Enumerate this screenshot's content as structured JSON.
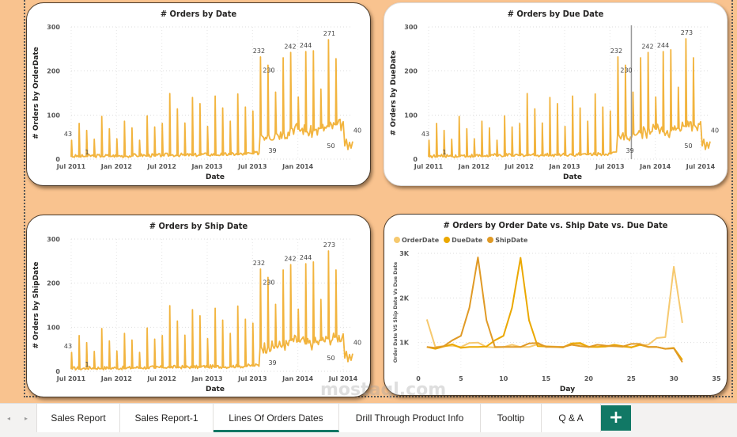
{
  "colors": {
    "background": "#F9C38F",
    "line": "#F2B43E",
    "accent": "#117865",
    "order_series": "#F6C96F",
    "due_series": "#EBA800",
    "ship_series": "#E09A26"
  },
  "tabs": {
    "items": [
      {
        "label": "Sales Report",
        "active": false
      },
      {
        "label": "Sales Report-1",
        "active": false
      },
      {
        "label": "Lines Of Orders Dates",
        "active": true
      },
      {
        "label": "Drill Through Product Info",
        "active": false
      },
      {
        "label": "Tooltip",
        "active": false
      },
      {
        "label": "Q & A",
        "active": false
      }
    ],
    "add_label": "+",
    "prev_icon": "◂",
    "next_icon": "▸"
  },
  "watermark": "mostaql.com",
  "chart_data": [
    {
      "type": "line",
      "title": "# Orders by Date",
      "xlabel": "Date",
      "ylabel": "# Orders by OrderDate",
      "ylim": [
        0,
        300
      ],
      "yticks": [
        "0",
        "100",
        "200",
        "300"
      ],
      "xticks": [
        "Jul 2011",
        "Jan 2012",
        "Jul 2012",
        "Jan 2013",
        "Jul 2013",
        "Jan 2014"
      ],
      "grid": true,
      "annotations": [
        {
          "label": "43",
          "x": 0.0,
          "y": 43
        },
        {
          "label": "1",
          "x": 0.03,
          "y": 1
        },
        {
          "label": "232",
          "x": 0.667,
          "y": 232
        },
        {
          "label": "230",
          "x": 0.75,
          "y": 230
        },
        {
          "label": "242",
          "x": 0.778,
          "y": 242
        },
        {
          "label": "244",
          "x": 0.833,
          "y": 244
        },
        {
          "label": "39",
          "x": 0.75,
          "y": 39
        },
        {
          "label": "271",
          "x": 0.917,
          "y": 271
        },
        {
          "label": "50",
          "x": 0.94,
          "y": 50
        },
        {
          "label": "40",
          "x": 1.0,
          "y": 40
        }
      ],
      "monthly_spikes": [
        43,
        81,
        65,
        45,
        97,
        69,
        46,
        86,
        71,
        43,
        98,
        73,
        81,
        149,
        114,
        82,
        140,
        126,
        74,
        143,
        116,
        86,
        148,
        118,
        109,
        232,
        213,
        152,
        230,
        242,
        141,
        244,
        246,
        159,
        271,
        228
      ],
      "baseline": [
        5,
        5,
        6,
        6,
        6,
        6,
        6,
        6,
        7,
        7,
        7,
        7,
        8,
        8,
        8,
        8,
        8,
        9,
        9,
        9,
        9,
        10,
        10,
        11,
        12,
        55,
        55,
        58,
        60,
        70,
        68,
        62,
        65,
        70,
        74,
        78
      ],
      "tail": 30
    },
    {
      "type": "line",
      "title": "# Orders by Due Date",
      "xlabel": "Date",
      "ylabel": "# Orders by DueDate",
      "ylim": [
        0,
        300
      ],
      "yticks": [
        "0",
        "100",
        "200",
        "300"
      ],
      "xticks": [
        "Jul 2011",
        "Jan 2012",
        "Jul 2012",
        "Jan 2013",
        "Jul 2013",
        "Jan 2014",
        "Jul 2014"
      ],
      "grid": true,
      "annotations": [
        {
          "label": "43",
          "x": 0.0,
          "y": 43
        },
        {
          "label": "1",
          "x": 0.03,
          "y": 1
        },
        {
          "label": "232",
          "x": 0.667,
          "y": 232
        },
        {
          "label": "230",
          "x": 0.75,
          "y": 230
        },
        {
          "label": "242",
          "x": 0.778,
          "y": 242
        },
        {
          "label": "244",
          "x": 0.833,
          "y": 244
        },
        {
          "label": "39",
          "x": 0.75,
          "y": 39
        },
        {
          "label": "273",
          "x": 0.917,
          "y": 273
        },
        {
          "label": "50",
          "x": 0.94,
          "y": 50
        },
        {
          "label": "40",
          "x": 1.0,
          "y": 40
        }
      ],
      "monthly_spikes": [
        43,
        81,
        65,
        45,
        97,
        69,
        46,
        86,
        71,
        43,
        98,
        73,
        81,
        149,
        114,
        82,
        140,
        126,
        74,
        143,
        116,
        86,
        148,
        118,
        109,
        232,
        213,
        152,
        230,
        242,
        141,
        244,
        248,
        163,
        273,
        230
      ],
      "baseline": [
        5,
        5,
        6,
        6,
        6,
        6,
        6,
        6,
        7,
        7,
        7,
        7,
        8,
        8,
        8,
        8,
        8,
        9,
        9,
        9,
        9,
        10,
        10,
        11,
        12,
        55,
        55,
        58,
        60,
        70,
        68,
        62,
        65,
        70,
        74,
        78
      ],
      "tail": 30,
      "reference_line_x": "Sep 2013"
    },
    {
      "type": "line",
      "title": "# Orders by Ship Date",
      "xlabel": "Date",
      "ylabel": "# Orders by ShipDate",
      "ylim": [
        0,
        300
      ],
      "yticks": [
        "0",
        "100",
        "200",
        "300"
      ],
      "xticks": [
        "Jul 2011",
        "Jan 2012",
        "Jul 2012",
        "Jan 2013",
        "Jul 2013",
        "Jan 2014",
        "Jul 2014"
      ],
      "grid": true,
      "annotations": [
        {
          "label": "43",
          "x": 0.0,
          "y": 43
        },
        {
          "label": "1",
          "x": 0.03,
          "y": 1
        },
        {
          "label": "232",
          "x": 0.667,
          "y": 232
        },
        {
          "label": "230",
          "x": 0.75,
          "y": 230
        },
        {
          "label": "242",
          "x": 0.778,
          "y": 242
        },
        {
          "label": "244",
          "x": 0.833,
          "y": 244
        },
        {
          "label": "39",
          "x": 0.75,
          "y": 39
        },
        {
          "label": "273",
          "x": 0.917,
          "y": 273
        },
        {
          "label": "50",
          "x": 0.94,
          "y": 50
        },
        {
          "label": "40",
          "x": 1.0,
          "y": 40
        }
      ],
      "monthly_spikes": [
        43,
        81,
        65,
        45,
        97,
        69,
        46,
        86,
        71,
        43,
        98,
        73,
        81,
        149,
        114,
        82,
        140,
        126,
        74,
        143,
        116,
        86,
        148,
        118,
        109,
        232,
        213,
        152,
        230,
        242,
        141,
        244,
        248,
        163,
        273,
        230
      ],
      "baseline": [
        5,
        5,
        6,
        6,
        6,
        6,
        6,
        6,
        7,
        7,
        7,
        7,
        8,
        8,
        8,
        8,
        8,
        9,
        9,
        9,
        9,
        10,
        10,
        11,
        12,
        55,
        55,
        58,
        60,
        70,
        68,
        62,
        65,
        70,
        74,
        78
      ],
      "tail": 30
    },
    {
      "type": "line",
      "title": "# Orders by Order Date vs. Ship Date vs. Due Date",
      "xlabel": "Day",
      "ylabel": "Order Date VS Ship Date Vs Due Date",
      "xlim": [
        0,
        35
      ],
      "ylim": [
        500,
        3000
      ],
      "xticks": [
        "0",
        "5",
        "10",
        "15",
        "20",
        "25",
        "30",
        "35"
      ],
      "yticks": [
        "1K",
        "2K",
        "3K"
      ],
      "legend": "top-left",
      "grid": true,
      "x": [
        1,
        2,
        3,
        4,
        5,
        6,
        7,
        8,
        9,
        10,
        11,
        12,
        13,
        14,
        15,
        16,
        17,
        18,
        19,
        20,
        21,
        22,
        23,
        24,
        25,
        26,
        27,
        28,
        29,
        30,
        31
      ],
      "series": [
        {
          "name": "OrderDate",
          "values": [
            1520,
            900,
            920,
            930,
            900,
            990,
            1000,
            900,
            890,
            900,
            950,
            900,
            900,
            960,
            920,
            910,
            900,
            980,
            960,
            910,
            900,
            910,
            920,
            900,
            900,
            940,
            950,
            1100,
            1120,
            2700,
            1440
          ]
        },
        {
          "name": "DueDate",
          "values": [
            900,
            860,
            910,
            960,
            880,
            900,
            900,
            910,
            1050,
            1150,
            1780,
            2900,
            1500,
            920,
            910,
            900,
            890,
            980,
            990,
            900,
            900,
            910,
            950,
            920,
            890,
            950,
            900,
            900,
            860,
            880,
            610
          ]
        },
        {
          "name": "ShipDate",
          "values": [
            900,
            880,
            920,
            1050,
            1150,
            1780,
            2910,
            1500,
            900,
            900,
            900,
            900,
            980,
            990,
            900,
            900,
            900,
            950,
            920,
            900,
            950,
            930,
            920,
            910,
            970,
            970,
            900,
            900,
            860,
            870,
            560
          ]
        }
      ]
    }
  ]
}
